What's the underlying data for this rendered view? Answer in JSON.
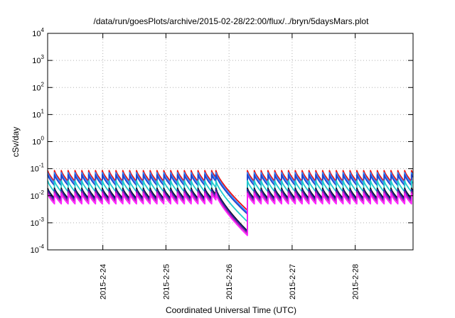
{
  "chart_data": {
    "type": "line",
    "title": "/data/run/goesPlots/archive/2015-02-28/22:00/flux/../bryn/5daysMars.plot",
    "xlabel": "Coordinated Universal Time (UTC)",
    "ylabel": "cSv/day",
    "yscale": "log",
    "ylim": [
      0.0001,
      10000
    ],
    "xlim": [
      "2015-02-23 03:00",
      "2015-02-28 22:00"
    ],
    "grid": true,
    "y_ticks": [
      {
        "base": "10",
        "exp": "4"
      },
      {
        "base": "10",
        "exp": "3"
      },
      {
        "base": "10",
        "exp": "2"
      },
      {
        "base": "10",
        "exp": "1"
      },
      {
        "base": "10",
        "exp": "0"
      },
      {
        "base": "10",
        "exp": "-1"
      },
      {
        "base": "10",
        "exp": "-2"
      },
      {
        "base": "10",
        "exp": "-3"
      },
      {
        "base": "10",
        "exp": "-4"
      }
    ],
    "x_ticks": [
      "2015-2-24",
      "2015-2-25",
      "2015-2-26",
      "2015-2-27",
      "2015-2-28"
    ],
    "pattern": {
      "period_hours": 2.6,
      "dip_start": "2015-02-25 19:00",
      "dip_end": "2015-02-26 07:00"
    },
    "series": [
      {
        "color": "#ee1111",
        "peak": 0.085,
        "trough": 0.034,
        "dip_end_value": 0.0029
      },
      {
        "color": "#3388ff",
        "peak": 0.072,
        "trough": 0.029,
        "dip_end_value": 0.0024
      },
      {
        "color": "#2244cc",
        "peak": 0.06,
        "trough": 0.024,
        "dip_end_value": 0.0021
      },
      {
        "color": "#22cccc",
        "peak": 0.036,
        "trough": 0.014,
        "dip_end_value": 0.0011
      },
      {
        "color": "#111111",
        "peak": 0.019,
        "trough": 0.008,
        "dip_end_value": 0.0005
      },
      {
        "color": "#2222aa",
        "peak": 0.017,
        "trough": 0.007,
        "dip_end_value": 0.00045
      },
      {
        "color": "#aa22aa",
        "peak": 0.014,
        "trough": 0.006,
        "dip_end_value": 0.0004
      },
      {
        "color": "#ff22ff",
        "peak": 0.012,
        "trough": 0.005,
        "dip_end_value": 0.00034
      }
    ]
  }
}
